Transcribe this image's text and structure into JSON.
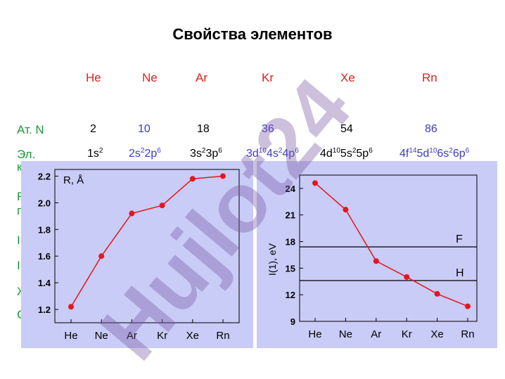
{
  "title": "Свойства элементов",
  "elements": [
    "He",
    "Ne",
    "Ar",
    "Kr",
    "Xe",
    "Rn"
  ],
  "row_labels": {
    "at_n": "Ат. N",
    "el": "Эл.",
    "el_cont": "к"
  },
  "atomic_numbers": [
    "2",
    "10",
    "18",
    "36",
    "54",
    "86"
  ],
  "configs": [
    [
      {
        "t": "1s"
      },
      {
        "s": "2"
      }
    ],
    [
      {
        "t": "2s"
      },
      {
        "s": "2"
      },
      {
        "t": "2p"
      },
      {
        "s": "6"
      }
    ],
    [
      {
        "t": "3s"
      },
      {
        "s": "2"
      },
      {
        "t": "3p"
      },
      {
        "s": "6"
      }
    ],
    [
      {
        "t": "3d"
      },
      {
        "s": "10"
      },
      {
        "t": "4s"
      },
      {
        "s": "2"
      },
      {
        "t": "4p"
      },
      {
        "s": "6"
      }
    ],
    [
      {
        "t": "4d"
      },
      {
        "s": "10"
      },
      {
        "t": "5s"
      },
      {
        "s": "2"
      },
      {
        "t": "5p"
      },
      {
        "s": "6"
      }
    ],
    [
      {
        "t": "4f"
      },
      {
        "s": "14"
      },
      {
        "t": "5d"
      },
      {
        "s": "10"
      },
      {
        "t": "6s"
      },
      {
        "s": "2"
      },
      {
        "t": "6p"
      },
      {
        "s": "6"
      }
    ]
  ],
  "hidden_row_labels": [
    "R",
    "п",
    "I",
    "I",
    "Ж",
    "С"
  ],
  "watermark_text": "Hujlot24",
  "colors": {
    "accent_red": "#e02020",
    "label_green": "#1a9a3a",
    "blue": "#3a3ac8",
    "panel": "#c8ccf6",
    "series": "#e8141e"
  },
  "chart_data": [
    {
      "type": "line",
      "categories": [
        "He",
        "Ne",
        "Ar",
        "Kr",
        "Xe",
        "Rn"
      ],
      "values": [
        1.22,
        1.6,
        1.92,
        1.98,
        2.18,
        2.2
      ],
      "ylabel": "R, Å",
      "ylim": [
        1.1,
        2.25
      ],
      "yticks": [
        "1.2",
        "1.4",
        "1.6",
        "1.8",
        "2.0",
        "2.2"
      ]
    },
    {
      "type": "line",
      "categories": [
        "He",
        "Ne",
        "Ar",
        "Kr",
        "Xe",
        "Rn"
      ],
      "values": [
        24.6,
        21.6,
        15.8,
        14.0,
        12.1,
        10.7
      ],
      "ylabel": "I(1), eV",
      "ylim": [
        9,
        25.5
      ],
      "yticks": [
        "9",
        "12",
        "15",
        "18",
        "21",
        "24"
      ],
      "reference_lines": [
        {
          "name": "F",
          "value": 17.4
        },
        {
          "name": "H",
          "value": 13.6
        }
      ]
    }
  ]
}
